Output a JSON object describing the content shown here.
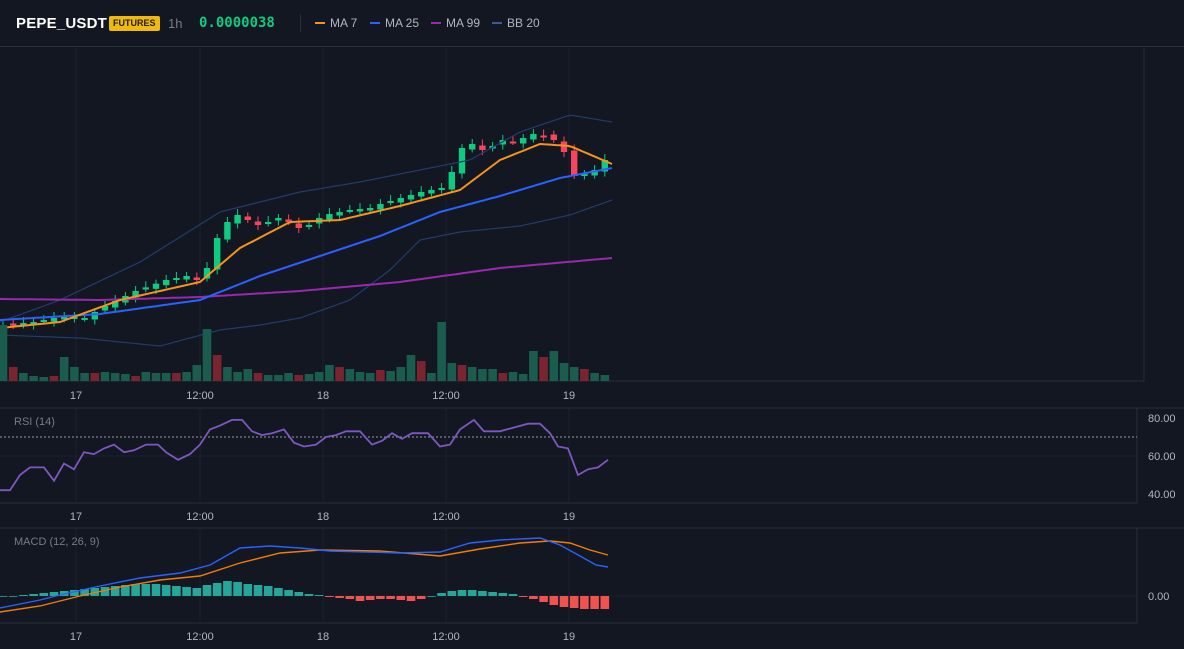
{
  "header": {
    "symbol": "PEPE_USDT",
    "badge": "FUTURES",
    "timeframe": "1h",
    "price": "0.0000038",
    "legend": [
      {
        "label": "MA 7",
        "color": "#f7931a"
      },
      {
        "label": "MA 25",
        "color": "#2962ff"
      },
      {
        "label": "MA 99",
        "color": "#9c27b0"
      },
      {
        "label": "BB 20",
        "color": "#2a4a8a"
      }
    ]
  },
  "colors": {
    "up": "#0ecb81",
    "down": "#f6465d",
    "bg": "#131722"
  },
  "time_axis": [
    "17",
    "12:00",
    "18",
    "12:00",
    "19"
  ],
  "rsi": {
    "label": "RSI (14)",
    "ticks": [
      "80.00",
      "60.00",
      "40.00"
    ],
    "level": 70
  },
  "macd": {
    "label": "MACD (12, 26, 9)",
    "zero_label": "0.00"
  }
}
